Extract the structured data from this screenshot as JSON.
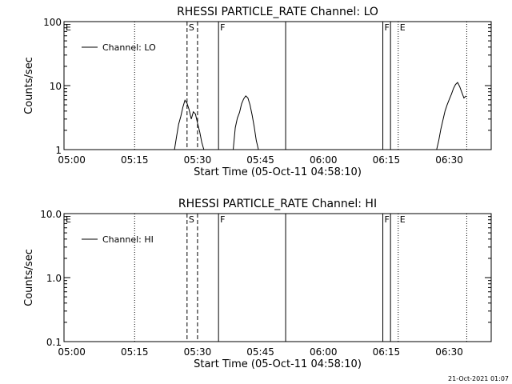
{
  "timestamp": "21-Oct-2021 01:07",
  "chart_data": [
    {
      "type": "line",
      "title": "RHESSI PARTICLE_RATE Channel: LO",
      "xlabel": "Start Time (05-Oct-11 04:58:10)",
      "ylabel": "Counts/sec",
      "y_scale": "log",
      "xlim": [
        "04:58:10",
        "06:40:00"
      ],
      "ylim": [
        1,
        100
      ],
      "x_ticks": [
        "05:00",
        "05:15",
        "05:30",
        "05:45",
        "06:00",
        "06:15",
        "06:30"
      ],
      "y_ticks": [
        "1",
        "10",
        "100"
      ],
      "legend": {
        "position": "top-left",
        "entries": [
          "Channel: LO"
        ]
      },
      "series": [
        {
          "name": "Channel: LO",
          "segments": [
            [
              [
                "05:24:30",
                1.0
              ],
              [
                "05:25:00",
                1.6
              ],
              [
                "05:25:30",
                2.5
              ],
              [
                "05:26:00",
                3.3
              ],
              [
                "05:26:30",
                4.6
              ],
              [
                "05:27:00",
                5.9
              ],
              [
                "05:27:30",
                5.3
              ],
              [
                "05:28:00",
                4.2
              ],
              [
                "05:28:30",
                3.0
              ],
              [
                "05:29:00",
                3.9
              ],
              [
                "05:29:30",
                3.6
              ],
              [
                "05:30:00",
                2.6
              ],
              [
                "05:30:30",
                1.9
              ],
              [
                "05:31:00",
                1.3
              ],
              [
                "05:31:30",
                1.0
              ]
            ],
            [
              [
                "05:38:30",
                1.0
              ],
              [
                "05:39:00",
                2.2
              ],
              [
                "05:39:30",
                3.1
              ],
              [
                "05:40:00",
                3.8
              ],
              [
                "05:40:30",
                5.2
              ],
              [
                "05:41:00",
                6.2
              ],
              [
                "05:41:30",
                6.9
              ],
              [
                "05:42:00",
                6.4
              ],
              [
                "05:42:30",
                5.0
              ],
              [
                "05:43:00",
                3.5
              ],
              [
                "05:43:30",
                2.3
              ],
              [
                "05:44:00",
                1.4
              ],
              [
                "05:44:30",
                1.0
              ]
            ],
            [
              [
                "06:27:00",
                1.0
              ],
              [
                "06:27:30",
                1.4
              ],
              [
                "06:28:00",
                2.1
              ],
              [
                "06:28:30",
                2.9
              ],
              [
                "06:29:00",
                4.0
              ],
              [
                "06:29:30",
                5.0
              ],
              [
                "06:30:00",
                6.1
              ],
              [
                "06:30:30",
                7.3
              ],
              [
                "06:31:00",
                9.0
              ],
              [
                "06:31:30",
                10.4
              ],
              [
                "06:32:00",
                11.2
              ],
              [
                "06:32:30",
                9.6
              ],
              [
                "06:33:00",
                7.8
              ],
              [
                "06:33:30",
                6.4
              ],
              [
                "06:34:00",
                6.9
              ]
            ]
          ]
        }
      ],
      "event_lines": [
        {
          "time": "04:58:10",
          "label": "E",
          "style": "dotted"
        },
        {
          "time": "05:15:00",
          "label": "",
          "style": "dotted"
        },
        {
          "time": "05:27:30",
          "label": "S",
          "style": "dashed"
        },
        {
          "time": "05:30:00",
          "label": "",
          "style": "dashed"
        },
        {
          "time": "05:35:00",
          "label": "F",
          "style": "solid"
        },
        {
          "time": "05:51:00",
          "label": "",
          "style": "solid"
        },
        {
          "time": "06:14:10",
          "label": "F",
          "style": "solid"
        },
        {
          "time": "06:16:00",
          "label": "",
          "style": "solid"
        },
        {
          "time": "06:17:50",
          "label": "E",
          "style": "dotted"
        },
        {
          "time": "06:34:10",
          "label": "",
          "style": "dotted"
        }
      ]
    },
    {
      "type": "line",
      "title": "RHESSI PARTICLE_RATE Channel: HI",
      "xlabel": "Start Time (05-Oct-11 04:58:10)",
      "ylabel": "Counts/sec",
      "y_scale": "log",
      "xlim": [
        "04:58:10",
        "06:40:00"
      ],
      "ylim": [
        0.1,
        10.0
      ],
      "x_ticks": [
        "05:00",
        "05:15",
        "05:30",
        "05:45",
        "06:00",
        "06:15",
        "06:30"
      ],
      "y_ticks": [
        "0.1",
        "1.0",
        "10.0"
      ],
      "legend": {
        "position": "top-left",
        "entries": [
          "Channel: HI"
        ]
      },
      "series": [
        {
          "name": "Channel: HI",
          "segments": []
        }
      ],
      "event_lines": [
        {
          "time": "04:58:10",
          "label": "E",
          "style": "dotted"
        },
        {
          "time": "05:15:00",
          "label": "",
          "style": "dotted"
        },
        {
          "time": "05:27:30",
          "label": "S",
          "style": "dashed"
        },
        {
          "time": "05:30:00",
          "label": "",
          "style": "dashed"
        },
        {
          "time": "05:35:00",
          "label": "F",
          "style": "solid"
        },
        {
          "time": "05:51:00",
          "label": "",
          "style": "solid"
        },
        {
          "time": "06:14:10",
          "label": "F",
          "style": "solid"
        },
        {
          "time": "06:16:00",
          "label": "",
          "style": "solid"
        },
        {
          "time": "06:17:50",
          "label": "E",
          "style": "dotted"
        },
        {
          "time": "06:34:10",
          "label": "",
          "style": "dotted"
        }
      ]
    }
  ]
}
